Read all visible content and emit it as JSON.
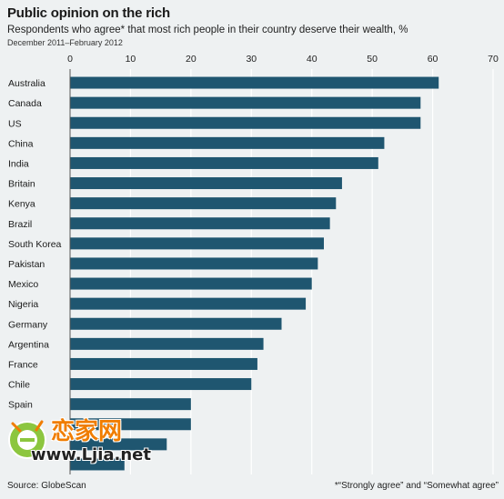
{
  "header": {
    "title": "Public opinion on the rich",
    "subtitle": "Respondents who agree* that most rich people in their country deserve their wealth, %",
    "dates": "December 2011–February 2012"
  },
  "footer": {
    "source": "Source: GlobeScan",
    "footnote": "*“Strongly agree” and “Somewhat agree”"
  },
  "watermark": {
    "brand": "恋家网",
    "url": "www.Ljia.net"
  },
  "colors": {
    "bar": "#1f5670",
    "grid": "#ffffff",
    "background": "#eef1f2"
  },
  "chart_data": {
    "type": "bar",
    "orientation": "horizontal",
    "categories": [
      "Australia",
      "Canada",
      "US",
      "China",
      "India",
      "Britain",
      "Kenya",
      "Brazil",
      "South Korea",
      "Pakistan",
      "Mexico",
      "Nigeria",
      "Germany",
      "Argentina",
      "France",
      "Chile",
      "Spain",
      "",
      "",
      ""
    ],
    "values": [
      61,
      58,
      58,
      52,
      51,
      45,
      44,
      43,
      42,
      41,
      40,
      39,
      35,
      32,
      31,
      30,
      20,
      20,
      16,
      9
    ],
    "xlim": [
      0,
      70
    ],
    "xticks": [
      0,
      10,
      20,
      30,
      40,
      50,
      60,
      70
    ],
    "grid": true,
    "axis_position": "top"
  }
}
